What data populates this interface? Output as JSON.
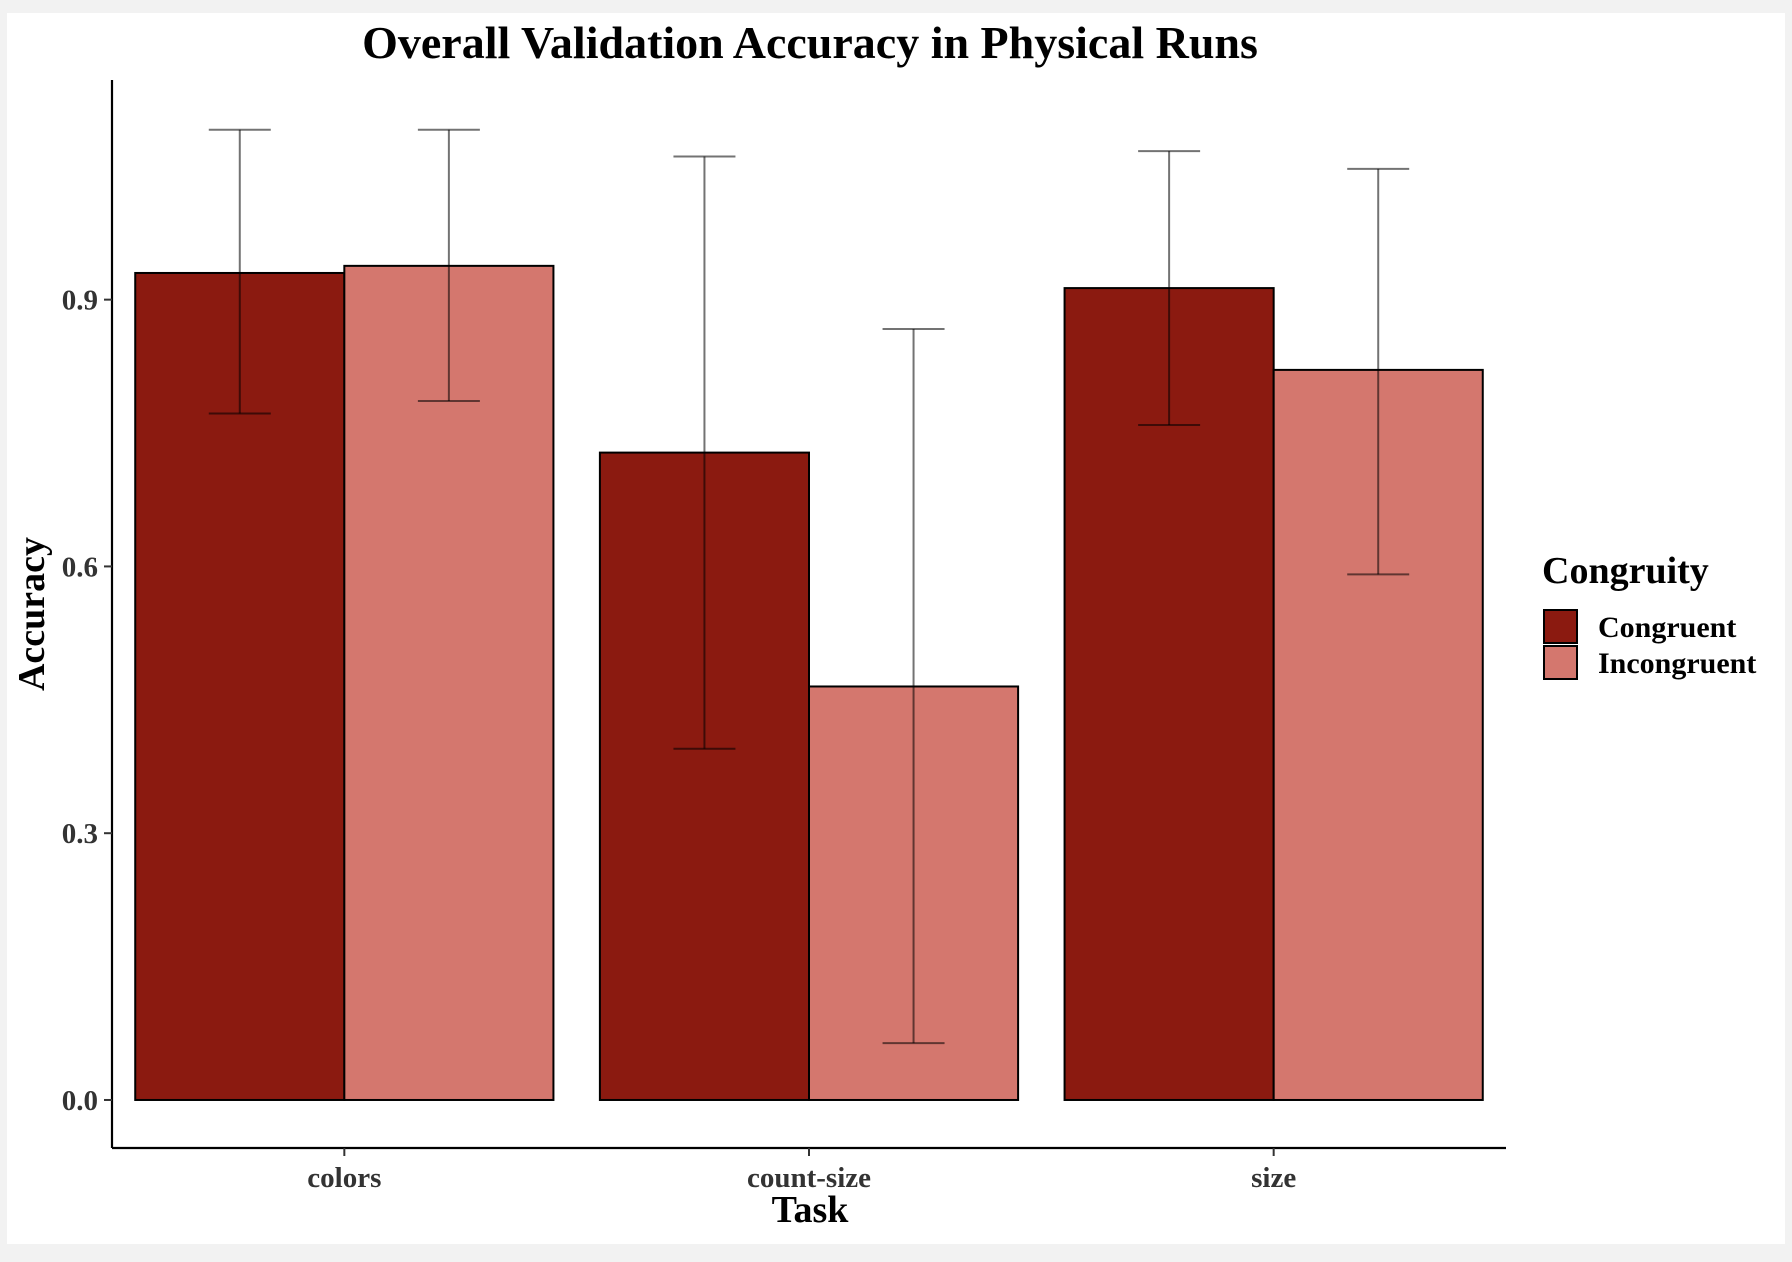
{
  "chart_data": {
    "type": "bar",
    "title": "Overall Validation Accuracy in Physical Runs",
    "xlabel": "Task",
    "ylabel": "Accuracy",
    "categories": [
      "colors",
      "count-size",
      "size"
    ],
    "series": [
      {
        "name": "Congruent",
        "color": "#8b1a10",
        "values": [
          0.93,
          0.728,
          0.913
        ],
        "error_low": [
          0.772,
          0.395,
          0.759
        ],
        "error_high": [
          1.091,
          1.061,
          1.067
        ]
      },
      {
        "name": "Incongruent",
        "color": "#d4776e",
        "values": [
          0.938,
          0.465,
          0.821
        ],
        "error_low": [
          0.786,
          0.064,
          0.591
        ],
        "error_high": [
          1.091,
          0.867,
          1.047
        ]
      }
    ],
    "ylim": [
      -0.054,
      1.147
    ],
    "yticks": [
      0.0,
      0.3,
      0.6,
      0.9
    ],
    "ytick_labels": [
      "0.0",
      "0.3",
      "0.6",
      "0.9"
    ],
    "legend_title": "Congruity",
    "legend_position": "right",
    "grid": false
  }
}
